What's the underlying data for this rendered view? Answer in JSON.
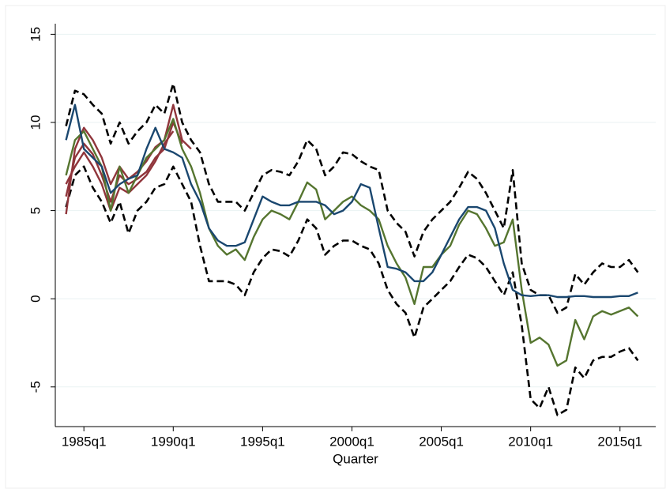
{
  "chart_data": {
    "type": "line",
    "x_label": "Quarter",
    "x": [
      1984.0,
      1984.5,
      1985.0,
      1985.5,
      1986.0,
      1986.5,
      1987.0,
      1987.5,
      1988.0,
      1988.5,
      1989.0,
      1989.5,
      1990.0,
      1990.5,
      1991.0,
      1991.5,
      1992.0,
      1992.5,
      1993.0,
      1993.5,
      1994.0,
      1994.5,
      1995.0,
      1995.5,
      1996.0,
      1996.5,
      1997.0,
      1997.5,
      1998.0,
      1998.5,
      1999.0,
      1999.5,
      2000.0,
      2000.5,
      2001.0,
      2001.5,
      2002.0,
      2002.5,
      2003.0,
      2003.5,
      2004.0,
      2004.5,
      2005.0,
      2005.5,
      2006.0,
      2006.5,
      2007.0,
      2007.5,
      2008.0,
      2008.5,
      2009.0,
      2009.5,
      2010.0,
      2010.5,
      2011.0,
      2011.5,
      2012.0,
      2012.5,
      2013.0,
      2013.5,
      2014.0,
      2014.5,
      2015.0,
      2015.5,
      2016.0
    ],
    "series": [
      {
        "color": "#000000",
        "dashed": true,
        "values": [
          9.8,
          11.8,
          11.6,
          11.0,
          10.5,
          8.8,
          10.0,
          8.8,
          9.5,
          10.0,
          11.0,
          10.5,
          12.2,
          10.0,
          9.0,
          8.3,
          6.5,
          5.5,
          5.5,
          5.5,
          5.0,
          6.0,
          7.0,
          7.3,
          7.2,
          7.0,
          7.8,
          9.0,
          8.5,
          7.0,
          7.5,
          8.3,
          8.2,
          7.8,
          7.5,
          7.3,
          5.0,
          4.3,
          3.8,
          2.4,
          3.8,
          4.5,
          5.0,
          5.5,
          6.3,
          7.2,
          6.8,
          6.0,
          5.0,
          4.0,
          7.3,
          2.0,
          0.5,
          0.2,
          0.2,
          -0.8,
          -0.5,
          1.4,
          0.8,
          1.5,
          2.0,
          1.8,
          1.8,
          2.2,
          1.5
        ]
      },
      {
        "color": "#000000",
        "dashed": true,
        "values": [
          5.2,
          7.0,
          7.5,
          6.3,
          5.5,
          4.3,
          5.5,
          3.7,
          5.0,
          5.5,
          6.3,
          6.5,
          7.5,
          6.5,
          5.5,
          3.0,
          1.0,
          1.0,
          1.0,
          0.8,
          0.2,
          1.5,
          2.3,
          2.8,
          2.7,
          2.4,
          3.3,
          4.5,
          4.0,
          2.5,
          3.0,
          3.3,
          3.3,
          3.0,
          2.8,
          2.0,
          0.5,
          -0.3,
          -0.8,
          -2.2,
          -0.5,
          0.0,
          0.5,
          1.0,
          1.8,
          2.5,
          2.3,
          1.8,
          1.0,
          0.2,
          1.5,
          -1.5,
          -5.7,
          -6.2,
          -5.0,
          -6.6,
          -6.3,
          -3.9,
          -4.5,
          -3.5,
          -3.3,
          -3.3,
          -3.0,
          -2.8,
          -3.5
        ]
      },
      {
        "color": "#90353b",
        "values": [
          4.8,
          8.5,
          9.7,
          9.0,
          8.0,
          6.5,
          7.5,
          6.8,
          7.2,
          7.8,
          8.6,
          9.0,
          11.0,
          9.0,
          8.5,
          null,
          null,
          null,
          null,
          null,
          null,
          null,
          null,
          null,
          null,
          null,
          null,
          null,
          null,
          null,
          null,
          null,
          null,
          null,
          null,
          null,
          null,
          null,
          null,
          null,
          null,
          null,
          null,
          null,
          null,
          null,
          null,
          null,
          null,
          null,
          null,
          null,
          null,
          null,
          null,
          null,
          null,
          null,
          null,
          null,
          null,
          null,
          null,
          null,
          null
        ]
      },
      {
        "color": "#90353b",
        "values": [
          5.8,
          8.0,
          8.8,
          8.2,
          7.0,
          5.5,
          7.0,
          6.5,
          6.8,
          7.2,
          8.0,
          8.5,
          10.0,
          8.8,
          null,
          null,
          null,
          null,
          null,
          null,
          null,
          null,
          null,
          null,
          null,
          null,
          null,
          null,
          null,
          null,
          null,
          null,
          null,
          null,
          null,
          null,
          null,
          null,
          null,
          null,
          null,
          null,
          null,
          null,
          null,
          null,
          null,
          null,
          null,
          null,
          null,
          null,
          null,
          null,
          null,
          null,
          null,
          null,
          null,
          null,
          null,
          null,
          null,
          null,
          null
        ]
      },
      {
        "color": "#90353b",
        "values": [
          6.5,
          7.5,
          8.3,
          7.5,
          6.5,
          5.0,
          6.3,
          6.0,
          6.5,
          7.0,
          7.8,
          8.8,
          9.5,
          null,
          null,
          null,
          null,
          null,
          null,
          null,
          null,
          null,
          null,
          null,
          null,
          null,
          null,
          null,
          null,
          null,
          null,
          null,
          null,
          null,
          null,
          null,
          null,
          null,
          null,
          null,
          null,
          null,
          null,
          null,
          null,
          null,
          null,
          null,
          null,
          null,
          null,
          null,
          null,
          null,
          null,
          null,
          null,
          null,
          null,
          null,
          null,
          null,
          null,
          null,
          null
        ]
      },
      {
        "color": "#55752f",
        "values": [
          7.0,
          9.0,
          9.5,
          8.5,
          7.5,
          5.0,
          7.5,
          6.0,
          7.0,
          8.0,
          8.5,
          9.0,
          10.2,
          8.5,
          7.5,
          6.0,
          4.0,
          3.0,
          2.5,
          2.8,
          2.2,
          3.5,
          4.5,
          5.0,
          4.8,
          4.5,
          5.5,
          6.6,
          6.2,
          4.5,
          5.0,
          5.5,
          5.8,
          5.3,
          5.0,
          4.5,
          3.0,
          2.0,
          1.2,
          -0.3,
          1.8,
          1.8,
          2.5,
          3.0,
          4.2,
          5.0,
          4.8,
          4.0,
          3.0,
          3.2,
          4.5,
          0.5,
          -2.5,
          -2.2,
          -2.6,
          -3.8,
          -3.5,
          -1.2,
          -2.3,
          -1.0,
          -0.7,
          -0.9,
          -0.7,
          -0.5,
          -1.0
        ]
      },
      {
        "color": "#1a476f",
        "values": [
          9.0,
          11.0,
          8.5,
          8.0,
          7.5,
          6.0,
          6.5,
          6.8,
          7.0,
          8.5,
          9.7,
          8.5,
          8.3,
          8.0,
          6.5,
          5.5,
          4.0,
          3.3,
          3.0,
          3.0,
          3.2,
          4.5,
          5.8,
          5.5,
          5.3,
          5.3,
          5.5,
          5.5,
          5.5,
          5.3,
          4.8,
          5.0,
          5.5,
          6.5,
          6.3,
          4.0,
          1.8,
          1.7,
          1.5,
          1.0,
          1.0,
          1.5,
          2.5,
          3.5,
          4.5,
          5.2,
          5.2,
          5.0,
          4.0,
          2.0,
          0.5,
          0.2,
          0.15,
          0.2,
          0.2,
          0.1,
          0.1,
          0.15,
          0.15,
          0.1,
          0.1,
          0.1,
          0.15,
          0.15,
          0.35
        ]
      }
    ],
    "xlim": [
      1983.4,
      2017.0
    ],
    "xticks": [
      {
        "value": 1985,
        "label": "1985q1"
      },
      {
        "value": 1990,
        "label": "1990q1"
      },
      {
        "value": 1995,
        "label": "1995q1"
      },
      {
        "value": 2000,
        "label": "2000q1"
      },
      {
        "value": 2005,
        "label": "2005q1"
      },
      {
        "value": 2010,
        "label": "2010q1"
      },
      {
        "value": 2015,
        "label": "2015q1"
      }
    ],
    "ylim": [
      -7.25,
      15.6
    ],
    "yticks": [
      -5,
      0,
      5,
      10,
      15
    ],
    "grid": true
  }
}
